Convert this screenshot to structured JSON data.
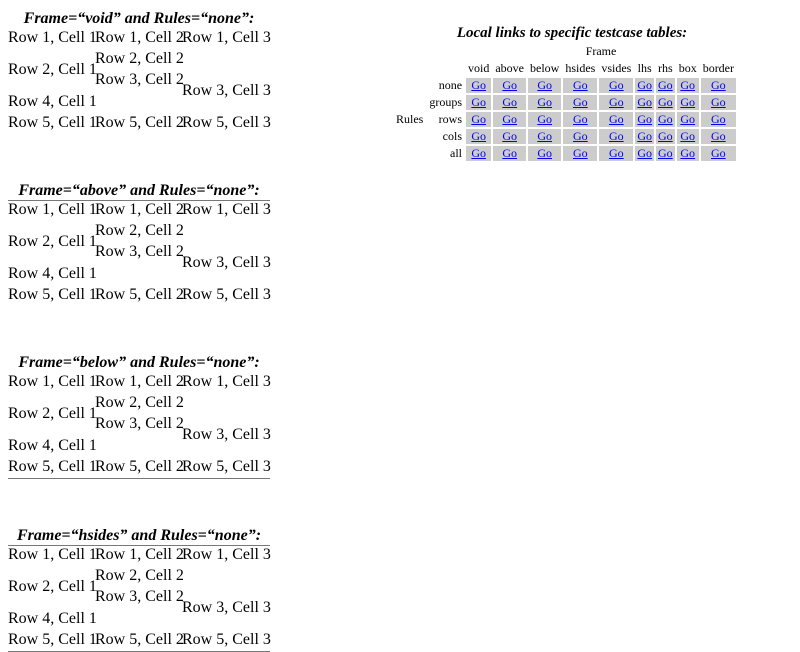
{
  "testcases": [
    {
      "caption": "Frame=“void” and Rules=“none”:"
    },
    {
      "caption": "Frame=“above” and Rules=“none”:"
    },
    {
      "caption": "Frame=“below” and Rules=“none”:"
    },
    {
      "caption": "Frame=“hsides” and Rules=“none”:"
    }
  ],
  "cells": {
    "r1c1": "Row 1, Cell 1",
    "r1c2": "Row 1, Cell 2",
    "r1c3": "Row 1, Cell 3",
    "r2c1": "Row 2, Cell 1",
    "r2c2": "Row 2, Cell 2",
    "r3c2": "Row 3, Cell 2",
    "r3c3": "Row 3, Cell 3",
    "r4c1": "Row 4, Cell 1",
    "r5c1": "Row 5, Cell 1",
    "r5c2": "Row 5, Cell 2",
    "r5c3": "Row 5, Cell 3"
  },
  "links": {
    "title": "Local links to specific testcase tables:",
    "frame_label": "Frame",
    "rules_label": "Rules",
    "frames": [
      "void",
      "above",
      "below",
      "hsides",
      "vsides",
      "lhs",
      "rhs",
      "box",
      "border"
    ],
    "rules": [
      "none",
      "groups",
      "rows",
      "cols",
      "all"
    ],
    "go_label": "Go"
  },
  "colors": {
    "link": "#0000ee",
    "go_cell_bg": "#cccccc",
    "frame_line": "#777777"
  }
}
